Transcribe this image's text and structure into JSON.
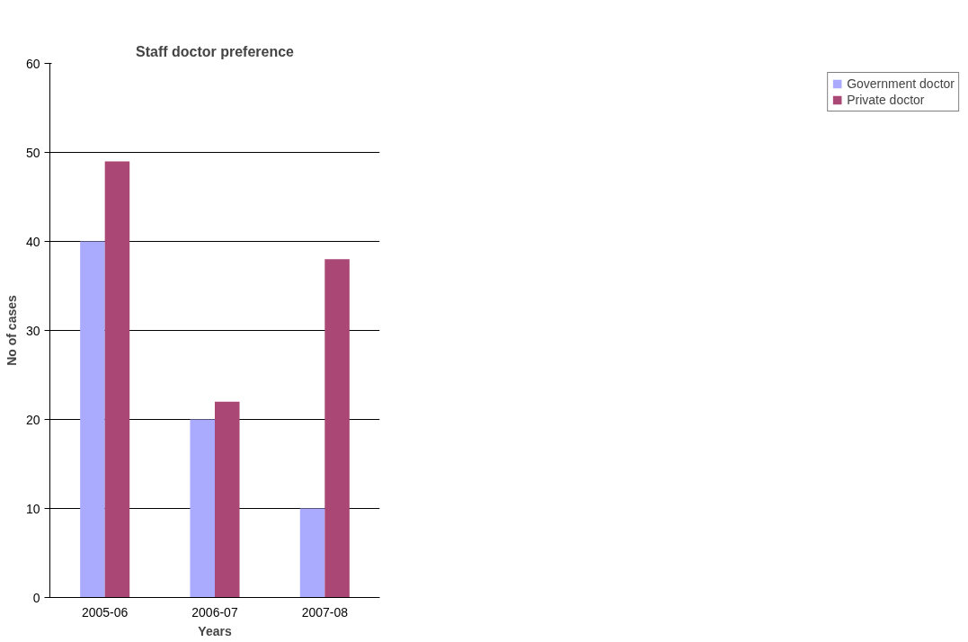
{
  "chart_data": {
    "type": "bar",
    "title": "Staff doctor preference",
    "xlabel": "Years",
    "ylabel": "No of cases",
    "categories": [
      "2005-06",
      "2006-07",
      "2007-08"
    ],
    "series": [
      {
        "name": "Government doctor",
        "color": "#aaaaff",
        "values": [
          40,
          20,
          10
        ]
      },
      {
        "name": "Private doctor",
        "color": "#aa4775",
        "values": [
          49,
          22,
          38
        ]
      }
    ],
    "ylim": [
      0,
      60
    ],
    "yticks": [
      0,
      10,
      20,
      30,
      40,
      50,
      60
    ],
    "grid": "y",
    "legend": "right"
  }
}
